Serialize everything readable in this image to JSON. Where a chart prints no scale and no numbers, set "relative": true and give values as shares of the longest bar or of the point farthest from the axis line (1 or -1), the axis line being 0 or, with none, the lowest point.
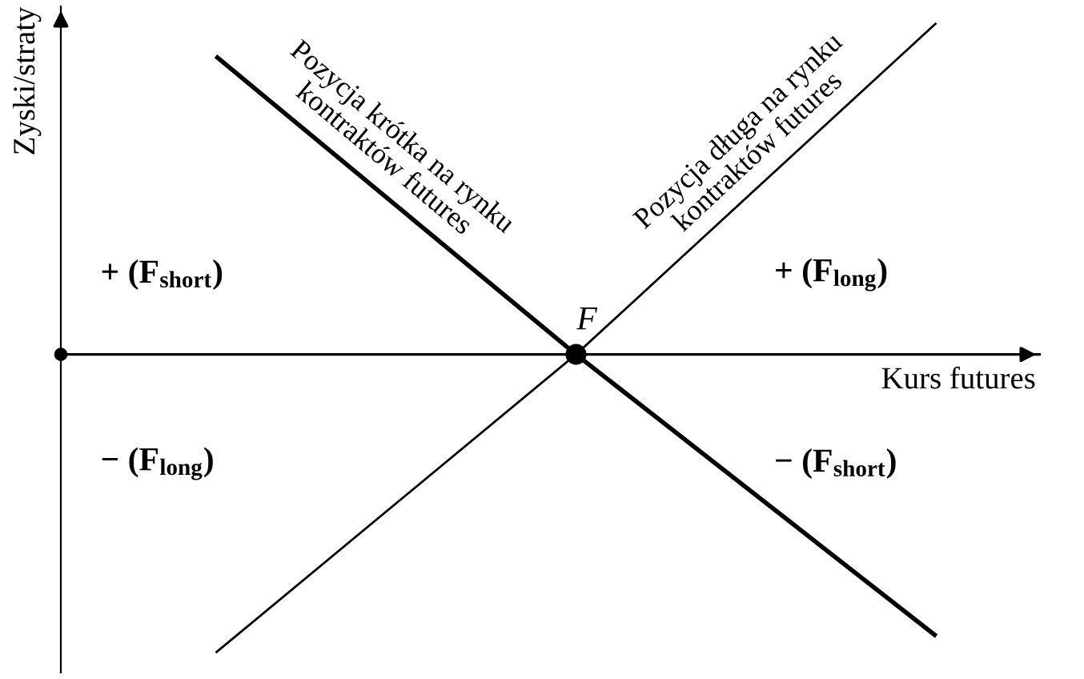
{
  "chart_data": {
    "type": "line",
    "relative": true,
    "ylabel": "Zyski/straty",
    "xlabel": "Kurs futures",
    "categories": [
      null,
      null,
      null
    ],
    "series": [
      {
        "color": "#000000",
        "values": [
          0.9,
          0,
          -0.85
        ]
      },
      {
        "color": "#000000",
        "values": [
          -0.9,
          0,
          1
        ]
      }
    ],
    "annotations": [
      "Pozycja krótka na rynku\nkontraktów futures",
      "Pozycja długa na rynku\nkontraktów futures",
      "F",
      "+ (F$_{short}$)",
      "+ (F$_{long}$)",
      "− (F$_{long}$)",
      "− (F$_{short}$)"
    ]
  }
}
